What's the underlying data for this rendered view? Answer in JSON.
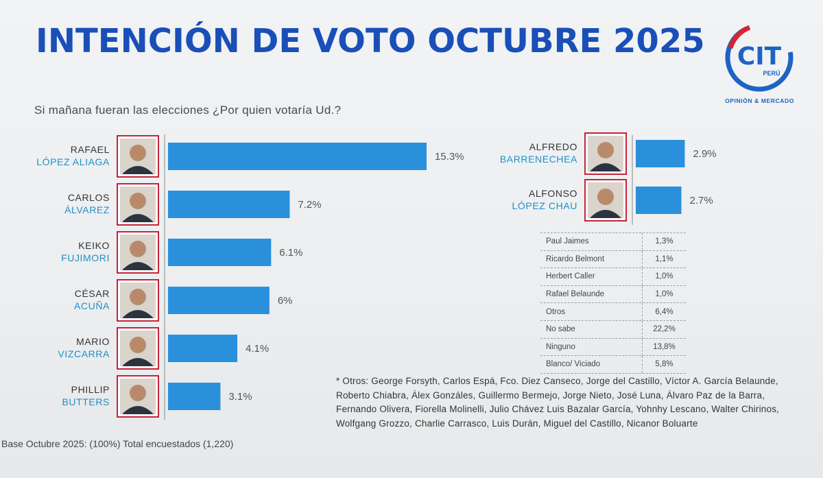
{
  "header": {
    "title": "INTENCIÓN DE VOTO OCTUBRE 2025",
    "subtitle": "Si mañana fueran las elecciones ¿Por quien votaría Ud.?"
  },
  "logo": {
    "text": "CIT",
    "sub": "PERÚ",
    "tagline": "OPINIÓN & MERCADO",
    "color": "#1e63c4",
    "accent": "#d9232e"
  },
  "colors": {
    "bar": "#2a90db",
    "title": "#1a4fb8",
    "first_name": "#333333",
    "last_name": "#1f8fc7",
    "frame": "#c4243a"
  },
  "chart_data": {
    "type": "bar",
    "title": "INTENCIÓN DE VOTO OCTUBRE 2025",
    "orientation": "horizontal",
    "unit": "%",
    "xlim": [
      0,
      15.3
    ],
    "groups": [
      {
        "name": "main",
        "candidates": [
          {
            "first": "RAFAEL",
            "last": "LÓPEZ ALIAGA",
            "value": 15.3,
            "label": "15.3%"
          },
          {
            "first": "CARLOS",
            "last": "ÁLVAREZ",
            "value": 7.2,
            "label": "7.2%"
          },
          {
            "first": "KEIKO",
            "last": "FUJIMORI",
            "value": 6.1,
            "label": "6.1%"
          },
          {
            "first": "CÉSAR",
            "last": "ACUÑA",
            "value": 6.0,
            "label": "6%"
          },
          {
            "first": "MARIO",
            "last": "VIZCARRA",
            "value": 4.1,
            "label": "4.1%"
          },
          {
            "first": "PHILLIP",
            "last": "BUTTERS",
            "value": 3.1,
            "label": "3.1%"
          }
        ]
      },
      {
        "name": "secondary",
        "candidates": [
          {
            "first": "ALFREDO",
            "last": "BARRENECHEA",
            "value": 2.9,
            "label": "2.9%"
          },
          {
            "first": "ALFONSO",
            "last": "LÓPEZ CHAU",
            "value": 2.7,
            "label": "2.7%"
          }
        ]
      }
    ]
  },
  "others_table": [
    {
      "name": "Paul Jaimes",
      "value": "1,3%"
    },
    {
      "name": "Ricardo Belmont",
      "value": "1,1%"
    },
    {
      "name": "Herbert Caller",
      "value": "1,0%"
    },
    {
      "name": "Rafael Belaunde",
      "value": "1,0%"
    },
    {
      "name": "Otros",
      "value": "6,4%"
    },
    {
      "name": "No sabe",
      "value": "22,2%"
    },
    {
      "name": "Ninguno",
      "value": "13,8%"
    },
    {
      "name": "Blanco/ Viciado",
      "value": "5,8%"
    }
  ],
  "footnote": "* Otros: George Forsyth, Carlos Espá, Fco. Diez Canseco, Jorge del Castillo, Víctor A. García Belaunde, Roberto Chiabra, Álex Gonzáles, Guillermo Bermejo, Jorge Nieto, José Luna, Álvaro Paz de la Barra, Fernando Olivera, Fiorella Molinelli, Julio Chávez Luis Bazalar García, Yohnhy Lescano, Walter Chirinos, Wolfgang Grozzo, Charlie Carrasco, Luis Durán, Miguel del Castillo, Nicanor Boluarte",
  "base_note": "Base Octubre 2025: (100%) Total encuestados (1,220)"
}
